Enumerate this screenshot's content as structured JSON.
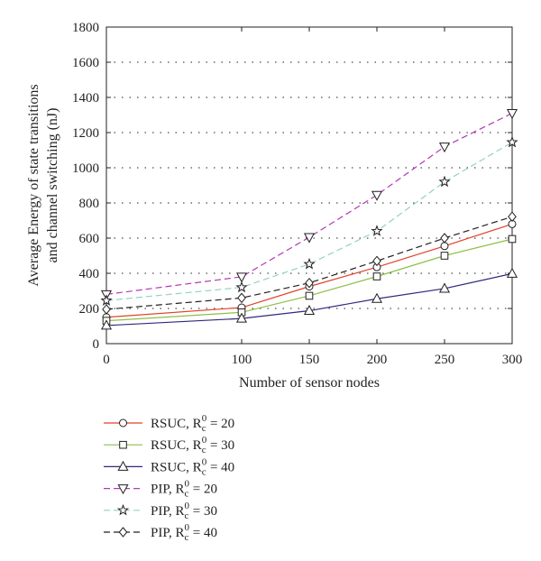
{
  "chart_data": {
    "type": "line",
    "title": "",
    "xlabel": "Number of sensor nodes",
    "ylabel_lines": [
      "Average Energy of state transitions",
      "and channel switching (nJ)"
    ],
    "xlim": [
      0,
      300
    ],
    "ylim": [
      0,
      1800
    ],
    "xticks": [
      0,
      100,
      150,
      200,
      250,
      300
    ],
    "yticks": [
      0,
      200,
      400,
      600,
      800,
      1000,
      1200,
      1400,
      1600,
      1800
    ],
    "grid": "horizontal dotted",
    "legend_position": "below",
    "x": [
      0,
      100,
      150,
      200,
      250,
      300
    ],
    "series": [
      {
        "name": "RSUC, R_c^0 = 20",
        "label": {
          "prefix": "RSUC, R",
          "sub": "c",
          "sup": "0",
          "suffix": " = 20"
        },
        "color": "#e2402b",
        "dash": "solid",
        "marker": "circle",
        "values": [
          150,
          205,
          325,
          435,
          555,
          680
        ]
      },
      {
        "name": "RSUC, R_c^0 = 30",
        "label": {
          "prefix": "RSUC, R",
          "sub": "c",
          "sup": "0",
          "suffix": " = 30"
        },
        "color": "#8dbf45",
        "dash": "solid",
        "marker": "square",
        "values": [
          130,
          178,
          272,
          382,
          500,
          595
        ]
      },
      {
        "name": "RSUC, R_c^0 = 40",
        "label": {
          "prefix": "RSUC, R",
          "sub": "c",
          "sup": "0",
          "suffix": " = 40"
        },
        "color": "#2e2a7e",
        "dash": "solid",
        "marker": "triangle-up",
        "values": [
          103,
          143,
          187,
          255,
          313,
          398
        ]
      },
      {
        "name": "PIP, R_c^0 = 20",
        "label": {
          "prefix": "PIP, R",
          "sub": "c",
          "sup": "0",
          "suffix": " = 20"
        },
        "color": "#b23ab5",
        "dash": "dashed",
        "marker": "triangle-down",
        "values": [
          280,
          380,
          605,
          845,
          1120,
          1310
        ]
      },
      {
        "name": "PIP, R_c^0 = 30",
        "label": {
          "prefix": "PIP, R",
          "sub": "c",
          "sup": "0",
          "suffix": " = 30"
        },
        "color": "#93d1c8",
        "dash": "dashed",
        "marker": "star",
        "values": [
          245,
          320,
          452,
          640,
          920,
          1145
        ]
      },
      {
        "name": "PIP, R_c^0 = 40",
        "label": {
          "prefix": "PIP, R",
          "sub": "c",
          "sup": "0",
          "suffix": " = 40"
        },
        "color": "#231f20",
        "dash": "dashed",
        "marker": "diamond",
        "values": [
          195,
          260,
          345,
          470,
          600,
          722
        ]
      }
    ]
  }
}
